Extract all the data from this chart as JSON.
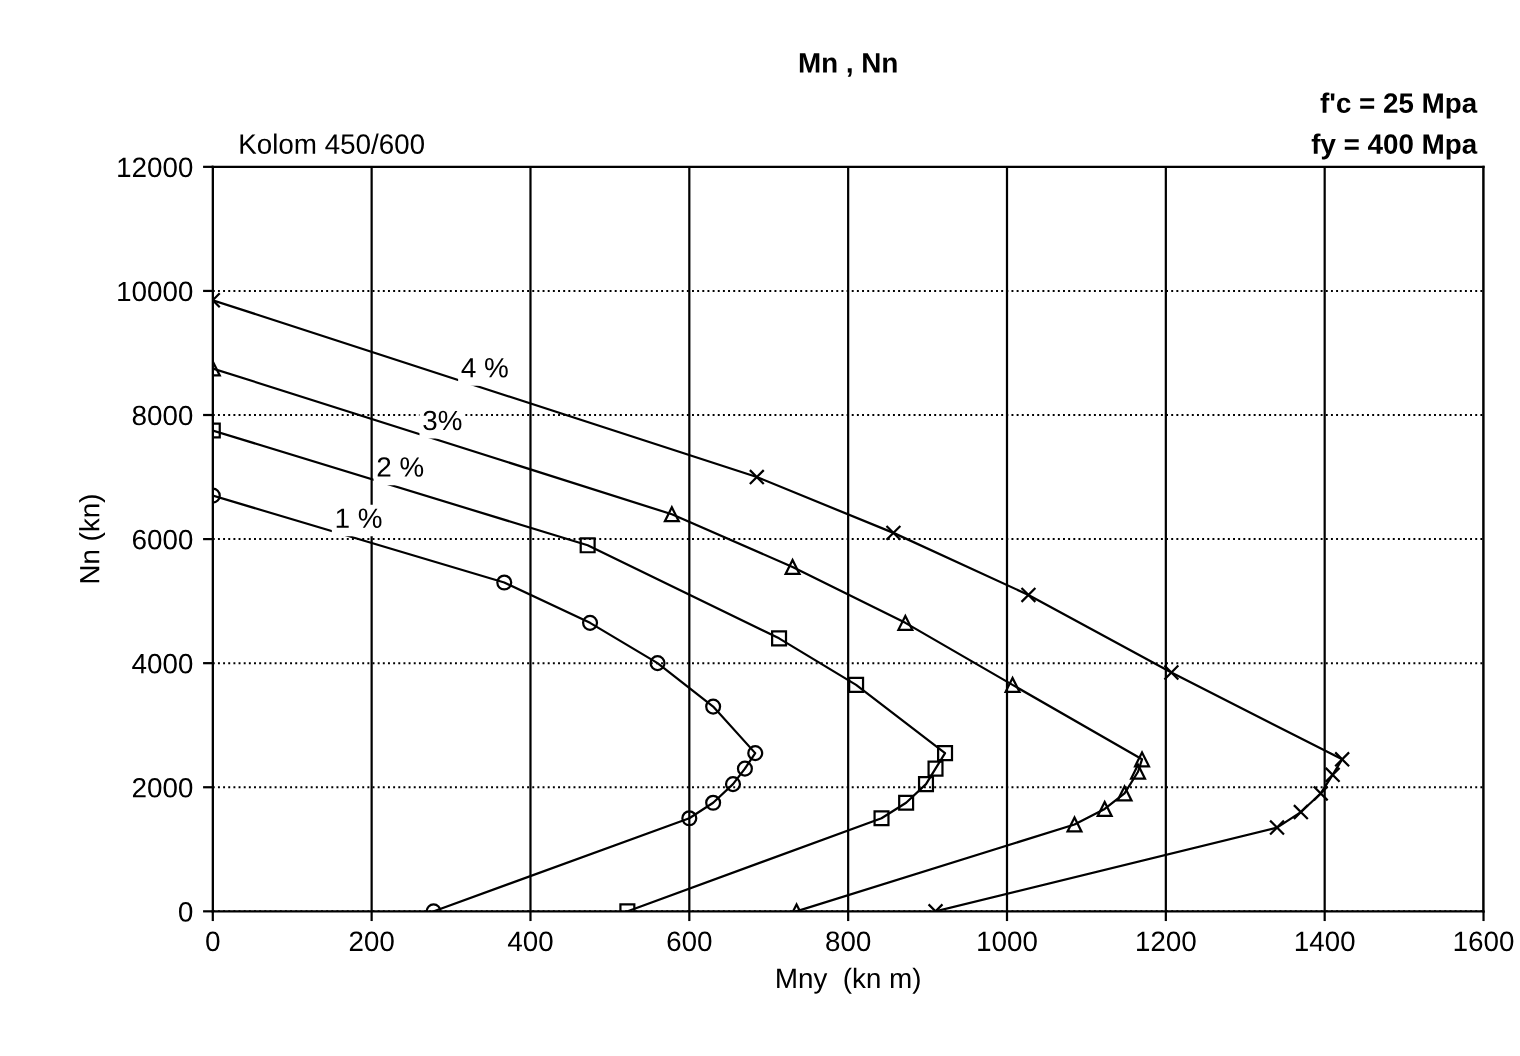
{
  "chart_data": {
    "type": "line",
    "title": "Mn , Nn",
    "xlabel": "Mny  (kn m)",
    "ylabel": "Nn (kn)",
    "annotations": [
      "Kolom 450/600",
      "f'c = 25 Mpa",
      "fy = 400 Mpa"
    ],
    "xlim": [
      0,
      1600
    ],
    "xticks": [
      0,
      200,
      400,
      600,
      800,
      1000,
      1200,
      1400,
      1600
    ],
    "ylim": [
      0,
      12000
    ],
    "yticks": [
      0,
      2000,
      4000,
      6000,
      8000,
      10000,
      12000
    ],
    "grid": true,
    "legend": false,
    "line_style": "solid",
    "series": [
      {
        "name": "1 %",
        "color": "#000000",
        "marker": "circle",
        "x": [
          0,
          367,
          475,
          560,
          630,
          683,
          670,
          655,
          630,
          600,
          278
        ],
        "values": [
          6700,
          5300,
          4650,
          4000,
          3300,
          2550,
          2300,
          2050,
          1750,
          1500,
          0
        ]
      },
      {
        "name": "2 %",
        "color": "#000000",
        "marker": "square",
        "x": [
          0,
          472,
          713,
          810,
          922,
          910,
          898,
          873,
          842,
          522
        ],
        "values": [
          7750,
          5900,
          4400,
          3650,
          2550,
          2300,
          2050,
          1750,
          1500,
          0
        ]
      },
      {
        "name": "3%",
        "color": "#000000",
        "marker": "triangle",
        "x": [
          0,
          578,
          730,
          872,
          1007,
          1170,
          1165,
          1148,
          1123,
          1085,
          735
        ],
        "values": [
          8750,
          6400,
          5550,
          4650,
          3650,
          2450,
          2250,
          1900,
          1650,
          1400,
          0
        ]
      },
      {
        "name": "4 %",
        "color": "#000000",
        "marker": "cross",
        "x": [
          0,
          685,
          857,
          1027,
          1207,
          1422,
          1410,
          1395,
          1370,
          1340,
          910
        ],
        "values": [
          9850,
          7000,
          6100,
          5100,
          3850,
          2450,
          2200,
          1900,
          1600,
          1350,
          0
        ]
      }
    ]
  }
}
